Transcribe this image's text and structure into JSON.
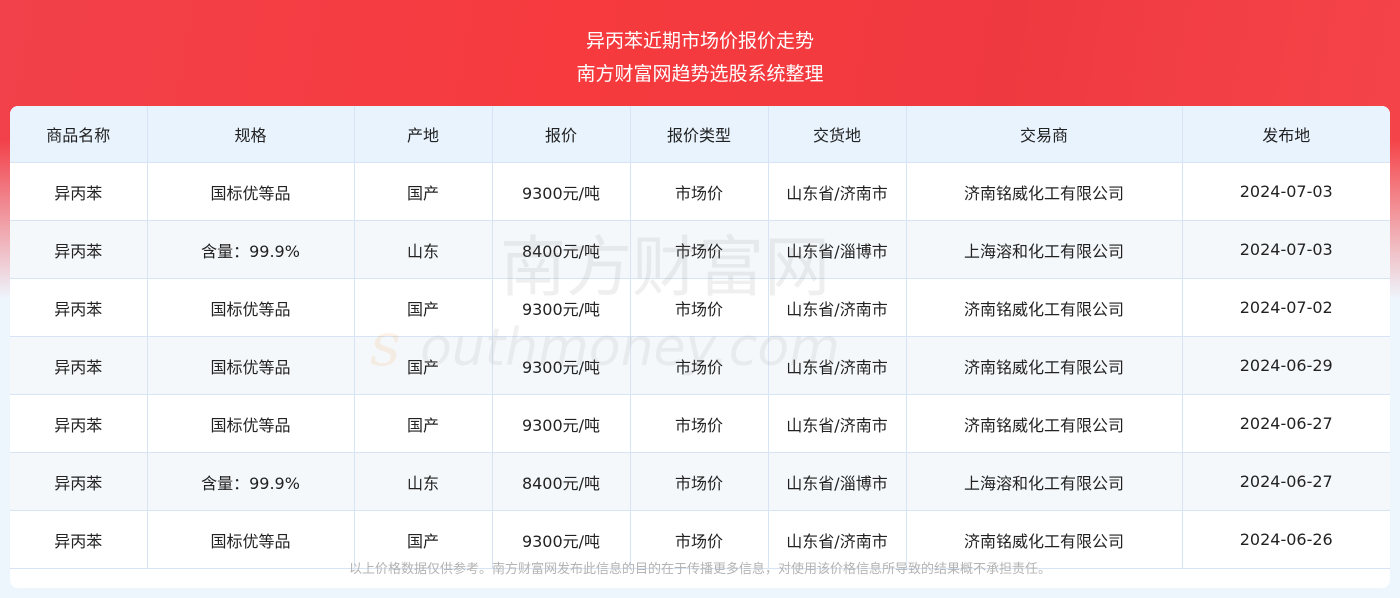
{
  "header": {
    "title": "异丙苯近期市场价报价走势",
    "subtitle": "南方财富网趋势选股系统整理"
  },
  "watermark": {
    "cn": "南方财富网",
    "en": "southmoney.com"
  },
  "table": {
    "columns": [
      "商品名称",
      "规格",
      "产地",
      "报价",
      "报价类型",
      "交货地",
      "交易商",
      "发布地"
    ],
    "rows": [
      [
        "异丙苯",
        "国标优等品",
        "国产",
        "9300元/吨",
        "市场价",
        "山东省/济南市",
        "济南铭威化工有限公司",
        "2024-07-03"
      ],
      [
        "异丙苯",
        "含量：99.9%",
        "山东",
        "8400元/吨",
        "市场价",
        "山东省/淄博市",
        "上海溶和化工有限公司",
        "2024-07-03"
      ],
      [
        "异丙苯",
        "国标优等品",
        "国产",
        "9300元/吨",
        "市场价",
        "山东省/济南市",
        "济南铭威化工有限公司",
        "2024-07-02"
      ],
      [
        "异丙苯",
        "国标优等品",
        "国产",
        "9300元/吨",
        "市场价",
        "山东省/济南市",
        "济南铭威化工有限公司",
        "2024-06-29"
      ],
      [
        "异丙苯",
        "国标优等品",
        "国产",
        "9300元/吨",
        "市场价",
        "山东省/济南市",
        "济南铭威化工有限公司",
        "2024-06-27"
      ],
      [
        "异丙苯",
        "含量：99.9%",
        "山东",
        "8400元/吨",
        "市场价",
        "山东省/淄博市",
        "上海溶和化工有限公司",
        "2024-06-27"
      ],
      [
        "异丙苯",
        "国标优等品",
        "国产",
        "9300元/吨",
        "市场价",
        "山东省/济南市",
        "济南铭威化工有限公司",
        "2024-06-26"
      ]
    ]
  },
  "footer": {
    "disclaimer": "以上价格数据仅供参考。南方财富网发布此信息的目的在于传播更多信息，对使用该价格信息所导致的结果概不承担责任。"
  }
}
